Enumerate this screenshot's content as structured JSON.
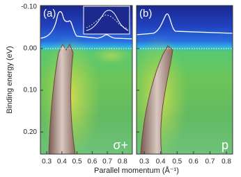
{
  "chart_data": {
    "type": "heatmap",
    "ylabel": "Binding energy (eV)",
    "xlabel": "Parallel momentum (Å⁻¹)",
    "ylim": [
      -0.103,
      0.253
    ],
    "yticks": [
      {
        "value": -0.1,
        "label": "-0.10"
      },
      {
        "value": 0,
        "label": "0.00"
      },
      {
        "value": 0.1,
        "label": "0.10"
      },
      {
        "value": 0.2,
        "label": "0.20"
      }
    ],
    "panels": [
      {
        "label": "(a)",
        "polarization": "σ+",
        "xlim": [
          0.258,
          0.865
        ],
        "xticks": [
          0.3,
          0.4,
          0.5,
          0.6,
          0.7,
          0.8
        ]
      },
      {
        "label": "(b)",
        "polarization": "p",
        "xlim": [
          0.253,
          0.838
        ],
        "xticks": [
          0.3,
          0.4,
          0.5,
          0.6,
          0.7,
          0.8
        ]
      }
    ]
  }
}
